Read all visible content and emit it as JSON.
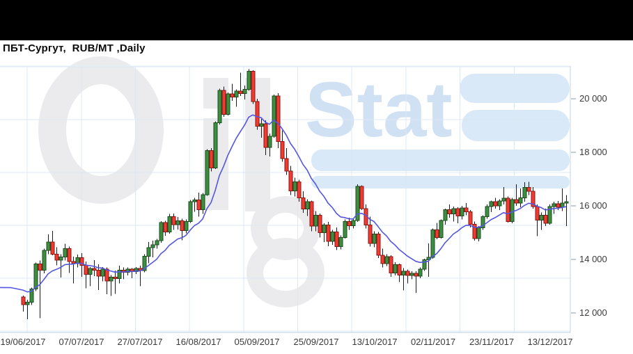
{
  "header": {
    "title": "ПБТ-Сургут,  RUB/MT ,Daily"
  },
  "watermark": {
    "name": "OilStat",
    "stat_text": "Stat",
    "gray_color": "#ebebed",
    "blue_color": "#d9e9f8",
    "stat_text_color": "#cfe1f2"
  },
  "chart_data": {
    "type": "candlestick",
    "title": "ПБТ-Сургут, RUB/MT, Daily",
    "ylim": [
      11200,
      21250
    ],
    "grid": true,
    "y_axis_side": "right",
    "y_ticks": [
      {
        "value": 20000,
        "label": "20 000"
      },
      {
        "value": 18000,
        "label": "18 000"
      },
      {
        "value": 16000,
        "label": "16 000"
      },
      {
        "value": 14000,
        "label": "14 000"
      },
      {
        "value": 12000,
        "label": "12 000"
      }
    ],
    "x_tick_labels": [
      "19/06/2017",
      "07/07/2017",
      "27/07/2017",
      "16/08/2017",
      "05/09/2017",
      "25/09/2017",
      "13/10/2017",
      "02/11/2017",
      "23/11/2017",
      "13/12/2017"
    ],
    "colors": {
      "up_fill": "#3e8e41",
      "up_border": "#1b4d1f",
      "down_fill": "#ee3b33",
      "down_border": "#8f1410",
      "wick": "#191919",
      "ma_line": "#5456e0",
      "grid": "#dce8f4",
      "border_right": "#c4d4e2",
      "border_bottom": "#b9cddd",
      "border_top": "#e8f0f7",
      "tick": "#8899aa",
      "label": "#3a3a3a"
    },
    "ma_line": {
      "name": "moving-average",
      "color": "#5456e0",
      "period": 13
    },
    "candles": [
      [
        12600,
        12650,
        12050,
        12310
      ],
      [
        12310,
        12500,
        11760,
        12400
      ],
      [
        12400,
        12950,
        12300,
        12900
      ],
      [
        12900,
        13880,
        12820,
        13830
      ],
      [
        13830,
        13960,
        11800,
        13600
      ],
      [
        13600,
        14400,
        13480,
        14340
      ],
      [
        14340,
        14930,
        14200,
        14650
      ],
      [
        14650,
        15060,
        14150,
        14200
      ],
      [
        14200,
        14450,
        13780,
        13970
      ],
      [
        13970,
        14200,
        13320,
        14090
      ],
      [
        14090,
        14580,
        13960,
        14400
      ],
      [
        14400,
        14480,
        13500,
        13920
      ],
      [
        13920,
        14100,
        13110,
        13850
      ],
      [
        13850,
        14180,
        13700,
        14070
      ],
      [
        14070,
        14230,
        13350,
        13780
      ],
      [
        13780,
        13920,
        12920,
        13440
      ],
      [
        13440,
        13720,
        13000,
        13660
      ],
      [
        13660,
        13980,
        13380,
        13600
      ],
      [
        13600,
        13820,
        12860,
        13380
      ],
      [
        13380,
        13720,
        13180,
        13640
      ],
      [
        13640,
        13700,
        12700,
        13200
      ],
      [
        13200,
        13420,
        12640,
        13340
      ],
      [
        13340,
        13580,
        12720,
        13280
      ],
      [
        13280,
        13760,
        13100,
        13600
      ],
      [
        13600,
        13700,
        13260,
        13520
      ],
      [
        13520,
        13700,
        13400,
        13640
      ],
      [
        13640,
        13680,
        13300,
        13540
      ],
      [
        13540,
        13720,
        13460,
        13660
      ],
      [
        13660,
        13760,
        13000,
        13580
      ],
      [
        13580,
        14200,
        13520,
        14120
      ],
      [
        14120,
        14650,
        13860,
        14440
      ],
      [
        14440,
        14700,
        14080,
        14540
      ],
      [
        14540,
        14760,
        14400,
        14700
      ],
      [
        14700,
        15430,
        14620,
        15380
      ],
      [
        15380,
        15440,
        14880,
        15020
      ],
      [
        15020,
        15700,
        14960,
        15600
      ],
      [
        15600,
        15720,
        15100,
        15300
      ],
      [
        15300,
        15580,
        15120,
        15440
      ],
      [
        15440,
        15520,
        14720,
        15080
      ],
      [
        15080,
        15500,
        14980,
        15420
      ],
      [
        15420,
        16220,
        15360,
        16160
      ],
      [
        16160,
        16300,
        15780,
        16220
      ],
      [
        16220,
        16500,
        15600,
        15860
      ],
      [
        15860,
        16480,
        15700,
        16420
      ],
      [
        16420,
        18120,
        16380,
        18060
      ],
      [
        18060,
        18160,
        17280,
        17420
      ],
      [
        17420,
        19160,
        17380,
        19100
      ],
      [
        19100,
        20380,
        19040,
        20310
      ],
      [
        20310,
        20450,
        19330,
        19420
      ],
      [
        19420,
        20240,
        19380,
        20180
      ],
      [
        20180,
        20560,
        19920,
        20060
      ],
      [
        20060,
        20350,
        19700,
        20280
      ],
      [
        20280,
        20980,
        20100,
        20200
      ],
      [
        20200,
        20500,
        19980,
        20350
      ],
      [
        20350,
        21100,
        20300,
        21020
      ],
      [
        21020,
        21060,
        19800,
        19900
      ],
      [
        19900,
        20000,
        18850,
        18970
      ],
      [
        18970,
        19250,
        18540,
        19060
      ],
      [
        19060,
        19200,
        17900,
        18180
      ],
      [
        18180,
        18700,
        17850,
        18600
      ],
      [
        18600,
        20160,
        18550,
        20100
      ],
      [
        20100,
        20210,
        18150,
        18400
      ],
      [
        18400,
        18820,
        17650,
        17760
      ],
      [
        17760,
        18150,
        17150,
        17300
      ],
      [
        17300,
        17500,
        16400,
        16560
      ],
      [
        16560,
        17050,
        16350,
        16900
      ],
      [
        16900,
        16980,
        16150,
        16300
      ],
      [
        16300,
        16550,
        15740,
        15880
      ],
      [
        15880,
        16250,
        15620,
        16150
      ],
      [
        16150,
        16200,
        15050,
        15250
      ],
      [
        15250,
        15800,
        15050,
        15650
      ],
      [
        15650,
        15720,
        14820,
        15000
      ],
      [
        15000,
        15350,
        14650,
        15280
      ],
      [
        15280,
        15400,
        14500,
        14680
      ],
      [
        14680,
        15100,
        14550,
        15020
      ],
      [
        15020,
        15200,
        14350,
        14480
      ],
      [
        14480,
        14900,
        14380,
        14820
      ],
      [
        14820,
        15500,
        14780,
        15420
      ],
      [
        15420,
        15560,
        15100,
        15260
      ],
      [
        15260,
        15530,
        15150,
        15460
      ],
      [
        15460,
        16800,
        15400,
        16730
      ],
      [
        16730,
        16760,
        15850,
        15900
      ],
      [
        15900,
        16050,
        15150,
        15280
      ],
      [
        15280,
        15600,
        14480,
        14600
      ],
      [
        14600,
        15050,
        14450,
        14950
      ],
      [
        14950,
        15020,
        14050,
        14150
      ],
      [
        14150,
        14400,
        13700,
        13850
      ],
      [
        13850,
        14200,
        13750,
        14100
      ],
      [
        14100,
        14150,
        13350,
        13500
      ],
      [
        13500,
        13900,
        13400,
        13800
      ],
      [
        13800,
        13850,
        13150,
        13420
      ],
      [
        13420,
        13680,
        12850,
        13560
      ],
      [
        13560,
        13620,
        13100,
        13400
      ],
      [
        13400,
        13560,
        13260,
        13480
      ],
      [
        13480,
        13560,
        12750,
        13380
      ],
      [
        13380,
        13700,
        13300,
        13640
      ],
      [
        13640,
        14030,
        13570,
        13990
      ],
      [
        13990,
        14600,
        13350,
        14080
      ],
      [
        14080,
        15150,
        14020,
        15100
      ],
      [
        15100,
        15360,
        14750,
        14820
      ],
      [
        14820,
        15500,
        14780,
        15450
      ],
      [
        15450,
        15900,
        15300,
        15860
      ],
      [
        15860,
        16050,
        15560,
        15700
      ],
      [
        15700,
        15980,
        15420,
        15900
      ],
      [
        15900,
        15950,
        15350,
        15620
      ],
      [
        15620,
        16000,
        15500,
        15920
      ],
      [
        15920,
        16100,
        15650,
        15780
      ],
      [
        15780,
        15850,
        15200,
        15310
      ],
      [
        15310,
        15420,
        14700,
        14780
      ],
      [
        14780,
        15250,
        14680,
        15180
      ],
      [
        15180,
        15650,
        15100,
        15600
      ],
      [
        15600,
        16050,
        15520,
        15980
      ],
      [
        15980,
        16200,
        15760,
        16150
      ],
      [
        16150,
        16300,
        15900,
        16000
      ],
      [
        16000,
        16250,
        15850,
        16180
      ],
      [
        16180,
        16700,
        16050,
        16280
      ],
      [
        16280,
        16350,
        15380,
        15420
      ],
      [
        15420,
        16300,
        15350,
        16230
      ],
      [
        16230,
        16800,
        16000,
        16100
      ],
      [
        16100,
        16650,
        15950,
        16300
      ],
      [
        16300,
        16880,
        16150,
        16690
      ],
      [
        16690,
        16900,
        16400,
        16550
      ],
      [
        16550,
        16700,
        15900,
        15980
      ],
      [
        15980,
        16050,
        14870,
        15470
      ],
      [
        15470,
        15750,
        15100,
        15650
      ],
      [
        15650,
        15900,
        15250,
        15350
      ],
      [
        15350,
        16050,
        15300,
        15980
      ],
      [
        15980,
        16150,
        15700,
        16080
      ],
      [
        16080,
        16180,
        15850,
        15950
      ],
      [
        15950,
        16650,
        15800,
        16100
      ],
      [
        16100,
        16400,
        15250,
        16150
      ]
    ]
  }
}
